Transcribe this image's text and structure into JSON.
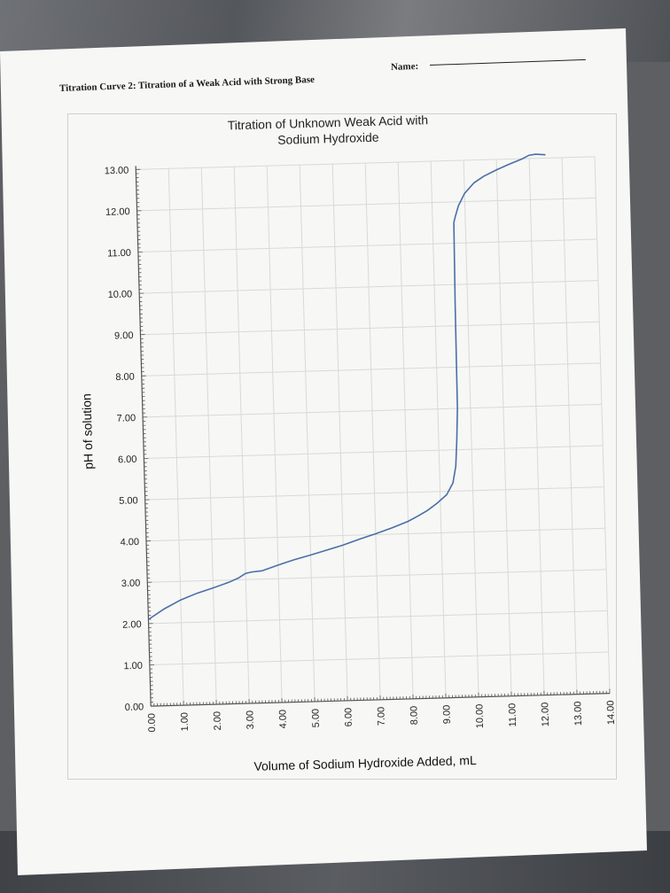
{
  "worksheet": {
    "title": "Titration Curve 2: Titration of a Weak Acid with Strong Base",
    "name_label": "Name:"
  },
  "chart_data": {
    "type": "line",
    "title": "Titration of Unknown Weak Acid with",
    "subtitle": "Sodium Hydroxide",
    "xlabel": "Volume of Sodium Hydroxide Added, mL",
    "ylabel": "pH of solution",
    "xlim": [
      0,
      14
    ],
    "ylim": [
      0,
      13
    ],
    "grid": true,
    "x_ticks": [
      "0.00",
      "1.00",
      "2.00",
      "3.00",
      "4.00",
      "5.00",
      "6.00",
      "7.00",
      "8.00",
      "9.00",
      "10.00",
      "11.00",
      "12.00",
      "13.00",
      "14.00"
    ],
    "y_ticks": [
      "0.00",
      "1.00",
      "2.00",
      "3.00",
      "4.00",
      "5.00",
      "6.00",
      "7.00",
      "8.00",
      "9.00",
      "10.00",
      "11.00",
      "12.00",
      "13.00"
    ],
    "series": [
      {
        "color": "#4a6fa8",
        "x": [
          0,
          0.5,
          1,
          1.5,
          2,
          2.5,
          2.8,
          3.0,
          3.2,
          3.5,
          4.0,
          4.5,
          5.0,
          5.5,
          6.0,
          6.5,
          7.0,
          7.5,
          8.0,
          8.3,
          8.6,
          8.9,
          9.2,
          9.4,
          9.5,
          9.55,
          9.6,
          9.62,
          9.65,
          9.7,
          9.8,
          10.0,
          10.3,
          10.6,
          11.0,
          11.4,
          11.8,
          12.0,
          12.2,
          12.5
        ],
        "y": [
          2.1,
          2.35,
          2.55,
          2.7,
          2.82,
          2.95,
          3.05,
          3.15,
          3.18,
          3.2,
          3.33,
          3.45,
          3.55,
          3.66,
          3.77,
          3.9,
          4.02,
          4.15,
          4.3,
          4.42,
          4.55,
          4.72,
          4.92,
          5.2,
          5.6,
          6.2,
          7.0,
          9.5,
          11.5,
          11.65,
          11.9,
          12.2,
          12.45,
          12.6,
          12.75,
          12.88,
          13.0,
          13.08,
          13.1,
          13.08
        ]
      }
    ]
  }
}
